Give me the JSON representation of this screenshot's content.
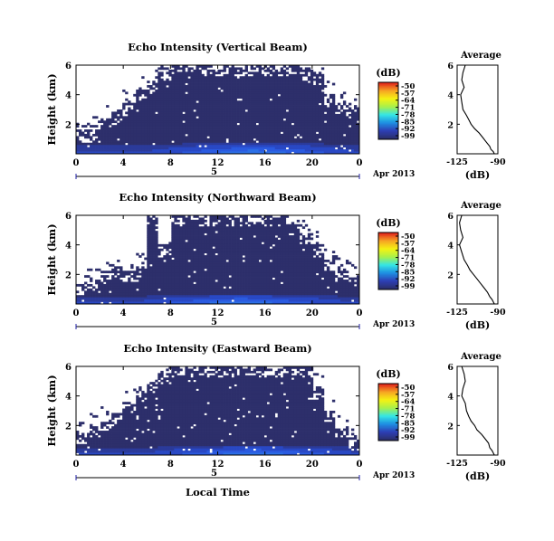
{
  "xlabel": "Local Time",
  "date_label": "Apr 2013",
  "day_label": "5",
  "colorbar_unit": "(dB)",
  "colorbar_ticks": [
    "-50",
    "-57",
    "-64",
    "-71",
    "-78",
    "-85",
    "-92",
    "-99"
  ],
  "colorbar_colors": [
    "#e1251c",
    "#f6a623",
    "#f5f213",
    "#a7f04c",
    "#35e6e4",
    "#1e8fe3",
    "#2d3fb5",
    "#2a2e6a"
  ],
  "background_color": "#2d2f6b",
  "panels": [
    {
      "title": "Echo Intensity (Vertical Beam)",
      "ylabel": "Height (km)",
      "avg_title": "Average",
      "avg_xlabel": "(dB)"
    },
    {
      "title": "Echo Intensity (Northward Beam)",
      "ylabel": "Height (km)",
      "avg_title": "Average",
      "avg_xlabel": "(dB)"
    },
    {
      "title": "Echo Intensity (Eastward Beam)",
      "ylabel": "Height (km)",
      "avg_title": "Average",
      "avg_xlabel": "(dB)"
    }
  ],
  "chart_data": [
    {
      "type": "heatmap",
      "title": "Echo Intensity (Vertical Beam)",
      "xlabel": "",
      "ylabel": "Height (km)",
      "xlim": [
        0,
        24
      ],
      "ylim": [
        0,
        6
      ],
      "xticks": [
        "0",
        "4",
        "8",
        "12",
        "16",
        "20",
        "0"
      ],
      "yticks": [
        "2",
        "4",
        "6"
      ],
      "colorbar": {
        "label": "(dB)",
        "range": [
          -99,
          -50
        ]
      },
      "valid_top_km": [
        1.6,
        1.6,
        2.4,
        2.8,
        3.4,
        4.4,
        4.9,
        5.8,
        6.0,
        6.0,
        6.0,
        6.0,
        6.0,
        6.0,
        6.0,
        6.0,
        6.0,
        6.0,
        6.0,
        5.8,
        5.5,
        4.0,
        3.4,
        3.2
      ],
      "strong_layer_top_km": 0.6,
      "strong_layer_peak_hour": 15
    },
    {
      "type": "line",
      "title": "Average",
      "xlabel": "(dB)",
      "xlim": [
        -125,
        -90
      ],
      "ylim": [
        0,
        6
      ],
      "xticks": [
        "-125",
        "-90"
      ],
      "yticks": [
        "2",
        "4",
        "6"
      ],
      "x": [
        -118,
        -120,
        -121,
        -119,
        -122,
        -121,
        -120,
        -117,
        -115,
        -113,
        -110,
        -106,
        -103,
        -100,
        -97,
        -96,
        -94,
        -93
      ],
      "y": [
        6.0,
        5.5,
        5.0,
        4.5,
        4.0,
        3.5,
        3.0,
        2.6,
        2.3,
        2.0,
        1.7,
        1.4,
        1.1,
        0.8,
        0.5,
        0.3,
        0.15,
        0.0
      ]
    },
    {
      "type": "heatmap",
      "title": "Echo Intensity (Northward Beam)",
      "xlabel": "",
      "ylabel": "Height (km)",
      "xlim": [
        0,
        24
      ],
      "ylim": [
        0,
        6
      ],
      "xticks": [
        "0",
        "4",
        "8",
        "12",
        "16",
        "20",
        "0"
      ],
      "yticks": [
        "2",
        "4",
        "6"
      ],
      "colorbar": {
        "label": "(dB)",
        "range": [
          -99,
          -50
        ]
      },
      "valid_top_km": [
        1.4,
        1.6,
        2.2,
        2.6,
        2.3,
        2.6,
        5.8,
        4.0,
        6.0,
        6.0,
        6.0,
        6.0,
        6.0,
        6.0,
        6.0,
        6.0,
        6.0,
        6.0,
        5.4,
        4.8,
        4.0,
        3.0,
        2.4,
        2.0
      ],
      "strong_layer_top_km": 0.5,
      "strong_layer_peak_hour": 14
    },
    {
      "type": "line",
      "title": "Average",
      "xlabel": "(dB)",
      "xlim": [
        -125,
        -90
      ],
      "ylim": [
        0,
        6
      ],
      "xticks": [
        "-125",
        "-90"
      ],
      "yticks": [
        "2",
        "4",
        "6"
      ],
      "x": [
        -121,
        -123,
        -122,
        -120,
        -123,
        -121,
        -119,
        -116,
        -114,
        -111,
        -108,
        -105,
        -102,
        -99,
        -97,
        -95,
        -94,
        -93
      ],
      "y": [
        6.0,
        5.5,
        5.0,
        4.5,
        4.0,
        3.5,
        3.0,
        2.6,
        2.3,
        2.0,
        1.7,
        1.4,
        1.1,
        0.8,
        0.5,
        0.3,
        0.15,
        0.0
      ]
    },
    {
      "type": "heatmap",
      "title": "Echo Intensity (Eastward Beam)",
      "xlabel": "Local Time",
      "ylabel": "Height (km)",
      "xlim": [
        0,
        24
      ],
      "ylim": [
        0,
        6
      ],
      "xticks": [
        "0",
        "4",
        "8",
        "12",
        "16",
        "20",
        "0"
      ],
      "yticks": [
        "2",
        "4",
        "6"
      ],
      "colorbar": {
        "label": "(dB)",
        "range": [
          -99,
          -50
        ]
      },
      "valid_top_km": [
        1.6,
        2.0,
        2.4,
        2.8,
        3.6,
        4.4,
        5.0,
        5.6,
        6.0,
        6.0,
        6.0,
        6.0,
        6.0,
        6.0,
        6.0,
        6.0,
        6.0,
        6.0,
        6.0,
        6.0,
        4.6,
        3.0,
        2.0,
        1.2
      ],
      "strong_layer_top_km": 0.5,
      "strong_layer_peak_hour": 15
    },
    {
      "type": "line",
      "title": "Average",
      "xlabel": "(dB)",
      "xlim": [
        -125,
        -90
      ],
      "ylim": [
        0,
        6
      ],
      "xticks": [
        "-125",
        "-90"
      ],
      "yticks": [
        "2",
        "4",
        "6"
      ],
      "x": [
        -121,
        -119,
        -118,
        -120,
        -121,
        -118,
        -117,
        -115,
        -113,
        -110,
        -108,
        -104,
        -101,
        -98,
        -97,
        -95,
        -94,
        -93
      ],
      "y": [
        6.0,
        5.5,
        5.0,
        4.5,
        4.0,
        3.5,
        3.0,
        2.6,
        2.3,
        2.0,
        1.7,
        1.4,
        1.1,
        0.8,
        0.5,
        0.3,
        0.15,
        0.0
      ]
    }
  ]
}
